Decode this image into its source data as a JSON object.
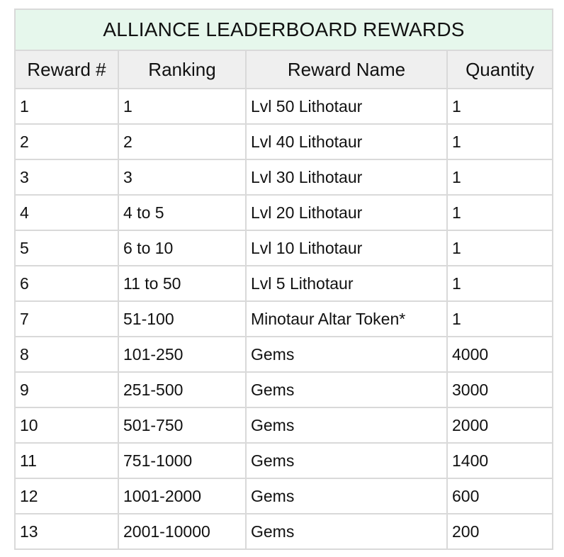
{
  "table": {
    "title": "ALLIANCE LEADERBOARD REWARDS",
    "columns": [
      "Reward #",
      "Ranking",
      "Reward Name",
      "Quantity"
    ],
    "rows": [
      [
        "1",
        "1",
        "Lvl 50 Lithotaur",
        "1"
      ],
      [
        "2",
        "2",
        "Lvl 40 Lithotaur",
        "1"
      ],
      [
        "3",
        "3",
        "Lvl 30 Lithotaur",
        "1"
      ],
      [
        "4",
        "4 to 5",
        "Lvl 20 Lithotaur",
        "1"
      ],
      [
        "5",
        "6 to 10",
        "Lvl 10 Lithotaur",
        "1"
      ],
      [
        "6",
        "11 to 50",
        "Lvl 5 Lithotaur",
        "1"
      ],
      [
        "7",
        "51-100",
        "Minotaur Altar Token*",
        "1"
      ],
      [
        "8",
        "101-250",
        "Gems",
        "4000"
      ],
      [
        "9",
        "251-500",
        "Gems",
        "3000"
      ],
      [
        "10",
        "501-750",
        "Gems",
        "2000"
      ],
      [
        "11",
        "751-1000",
        "Gems",
        "1400"
      ],
      [
        "12",
        "1001-2000",
        "Gems",
        "600"
      ],
      [
        "13",
        "2001-10000",
        "Gems",
        "200"
      ]
    ]
  },
  "colors": {
    "title_background": "#e6f7ec",
    "header_background": "#efefef",
    "border": "#d9d9d9"
  }
}
